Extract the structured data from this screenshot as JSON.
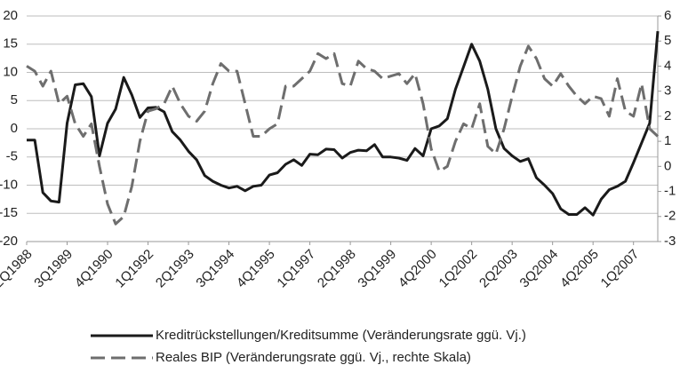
{
  "chart_data": {
    "type": "line",
    "categories": [
      "2Q1988",
      null,
      null,
      null,
      null,
      "3Q1989",
      null,
      null,
      null,
      null,
      "4Q1990",
      null,
      null,
      null,
      null,
      "1Q1992",
      null,
      null,
      null,
      null,
      "2Q1993",
      null,
      null,
      null,
      null,
      "3Q1994",
      null,
      null,
      null,
      null,
      "4Q1995",
      null,
      null,
      null,
      null,
      "1Q1997",
      null,
      null,
      null,
      null,
      "2Q1998",
      null,
      null,
      null,
      null,
      "3Q1999",
      null,
      null,
      null,
      null,
      "4Q2000",
      null,
      null,
      null,
      null,
      "1Q2002",
      null,
      null,
      null,
      null,
      "2Q2003",
      null,
      null,
      null,
      null,
      "3Q2004",
      null,
      null,
      null,
      null,
      "4Q2005",
      null,
      null,
      null,
      null,
      "1Q2007",
      null,
      null,
      null
    ],
    "series": [
      {
        "name": "Kreditrückstellungen/Kreditsumme (Veränderungsrate ggü. Vj.)",
        "color": "#1a1a1a",
        "dashed": false,
        "values": [
          -2,
          -2,
          -11.3,
          -12.8,
          -13,
          1,
          7.8,
          8,
          5.7,
          -4.8,
          1,
          3.5,
          9.1,
          6,
          2,
          3.7,
          3.8,
          3,
          -0.5,
          -2,
          -4,
          -5.5,
          -8.3,
          -9.3,
          -10,
          -10.5,
          -10.2,
          -11,
          -10.2,
          -10,
          -8.2,
          -7.8,
          -6.3,
          -5.5,
          -6.5,
          -4.5,
          -4.6,
          -3.6,
          -3.7,
          -5.2,
          -4.2,
          -3.8,
          -3.9,
          -2.8,
          -5,
          -5,
          -5.2,
          -5.6,
          -3.5,
          -4.8,
          0,
          0.5,
          1.8,
          7,
          11,
          15,
          12,
          7,
          0,
          -3.5,
          -4.8,
          -5.8,
          -5.3,
          -8.7,
          -10,
          -11.5,
          -14.2,
          -15.2,
          -15.2,
          -14,
          -15.3,
          -12.5,
          -10.8,
          -10.2,
          -9.3,
          -6,
          -2.5,
          1,
          17.3
        ]
      },
      {
        "name": "Reales BIP (Veränderungsrate ggü. Vj., rechte Skala)",
        "color": "#6e6e6e",
        "dashed": true,
        "axis": "y2",
        "values": [
          4,
          3.8,
          3.2,
          3.8,
          2.5,
          2.8,
          1.7,
          1.2,
          1.7,
          0,
          -1.5,
          -2.3,
          -2,
          -0.8,
          1,
          2.2,
          2.3,
          2.5,
          3.2,
          2.5,
          2,
          1.8,
          2.2,
          3.3,
          4.1,
          3.8,
          3.8,
          2.5,
          1.2,
          1.2,
          1.5,
          1.7,
          3.2,
          3.2,
          3.5,
          3.8,
          4.5,
          4.3,
          4.5,
          3.3,
          3.2,
          4.2,
          3.9,
          3.8,
          3.5,
          3.6,
          3.7,
          3.3,
          3.7,
          2.5,
          0.7,
          -0.2,
          0,
          1,
          1.7,
          1.5,
          2.5,
          0.8,
          0.5,
          1.5,
          2.8,
          4,
          4.8,
          4.3,
          3.5,
          3.2,
          3.7,
          3.2,
          2.8,
          2.5,
          2.8,
          2.7,
          2,
          3.5,
          2.2,
          2,
          3.3,
          1.5,
          1.2
        ]
      }
    ],
    "ylim": [
      -20,
      20
    ],
    "yticks": [
      -20,
      -15,
      -10,
      -5,
      0,
      5,
      10,
      15,
      20
    ],
    "y2lim": [
      -3,
      6
    ],
    "y2ticks": [
      -3,
      -2,
      -1,
      0,
      1,
      2,
      3,
      4,
      5,
      6
    ],
    "grid": true,
    "legend": "bottom"
  }
}
